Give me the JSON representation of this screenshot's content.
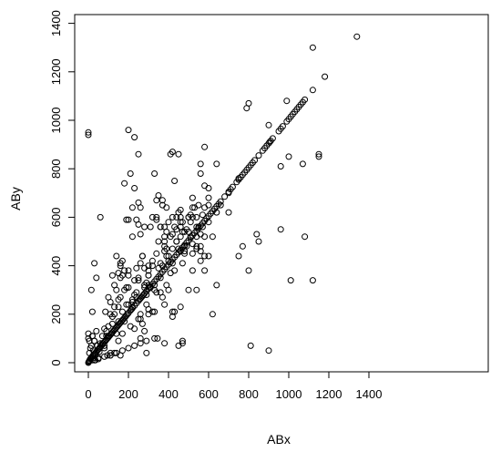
{
  "chart_data": {
    "type": "scatter",
    "title": "",
    "xlabel": "ABx",
    "ylabel": "ABy",
    "xlim": [
      -50,
      1400
    ],
    "ylim": [
      -30,
      1400
    ],
    "x_ticks": [
      0,
      200,
      400,
      600,
      800,
      1000,
      1200,
      1400
    ],
    "y_ticks": [
      0,
      200,
      400,
      600,
      800,
      1000,
      1200,
      1400
    ],
    "x_tick_labels": [
      "0",
      "200",
      "400",
      "600",
      "800",
      "1000",
      "1200",
      "1400"
    ],
    "y_tick_labels": [
      "0",
      "200",
      "400",
      "600",
      "800",
      "1000",
      "1200",
      "1400"
    ],
    "grid": false,
    "legend": "none",
    "marker": "open-circle",
    "marker_color": "#000000",
    "series": [
      {
        "x": [
          0,
          2,
          4,
          6,
          8,
          12,
          15,
          18,
          22,
          25,
          30,
          35,
          40,
          45,
          50,
          55,
          60,
          65,
          70,
          75,
          80,
          85,
          90,
          95,
          100,
          105,
          110,
          115,
          120,
          125,
          130,
          135,
          140,
          145,
          150,
          155,
          160,
          165,
          170,
          175,
          180,
          185,
          190,
          195,
          200,
          210,
          215,
          220,
          230,
          240,
          250,
          255,
          260,
          265,
          270,
          275,
          280,
          290,
          300,
          305,
          310,
          320,
          330,
          340,
          350,
          360,
          370,
          380,
          390,
          400,
          410,
          420,
          430,
          440,
          450,
          460,
          470,
          480,
          490,
          500,
          510,
          520,
          530,
          540,
          550,
          560,
          570,
          580,
          590,
          600,
          610,
          620,
          630,
          640,
          650,
          660,
          680,
          700,
          710,
          720,
          740,
          750,
          760,
          770,
          780,
          790,
          800,
          810,
          820,
          830,
          850,
          870,
          880,
          890,
          900,
          905,
          910,
          920,
          950,
          960,
          970,
          990,
          1000,
          1010,
          1020,
          1030,
          1040,
          1050,
          1060,
          1070,
          1080,
          1120,
          1340,
          0,
          5,
          20,
          60,
          80,
          100,
          150,
          180,
          230,
          260,
          290,
          330,
          380,
          420,
          470,
          520,
          560,
          620,
          640,
          20,
          30,
          40,
          15,
          90,
          110,
          140,
          150,
          160,
          170,
          200,
          230,
          260,
          300,
          345,
          380,
          420,
          460,
          510,
          540,
          580,
          620,
          700,
          750,
          800,
          850,
          900,
          960,
          1000,
          1080,
          1120,
          1150,
          0,
          10,
          20,
          25,
          30,
          40,
          50,
          60,
          70,
          80,
          95,
          100,
          120,
          130,
          140,
          160,
          180,
          200,
          220,
          240,
          250,
          260,
          280,
          300,
          320,
          340,
          360,
          380,
          400,
          420,
          440,
          460,
          480,
          500,
          520,
          540,
          560,
          580,
          600,
          0,
          5,
          15,
          20,
          25,
          30,
          35,
          45,
          55,
          70,
          80,
          90,
          110,
          120,
          130,
          150,
          160,
          170,
          190,
          200,
          210,
          220,
          230,
          240,
          250,
          260,
          270,
          280,
          290,
          300,
          320,
          330,
          340,
          350,
          360,
          370,
          380,
          390,
          400,
          410,
          430,
          450,
          460,
          470,
          490,
          500,
          520,
          540,
          570,
          580,
          600,
          200,
          230,
          250,
          260,
          280,
          300,
          330,
          350,
          370,
          390,
          400,
          420,
          440,
          460,
          480,
          500,
          520,
          540,
          560,
          580,
          600,
          640,
          700,
          750,
          150,
          170,
          190,
          210,
          230,
          250,
          270,
          290,
          310,
          340,
          360,
          380,
          410,
          430,
          450,
          470,
          490,
          510,
          530,
          550,
          570,
          600,
          120,
          140,
          160,
          180,
          200,
          220,
          240,
          260,
          280,
          300,
          320,
          340,
          370,
          390,
          420,
          440,
          460,
          480,
          500,
          520,
          540,
          560,
          580,
          100,
          110,
          130,
          150,
          170,
          190,
          220,
          250,
          270,
          290,
          310,
          330,
          350,
          370,
          390,
          410,
          430,
          450,
          470,
          35,
          55,
          85,
          110,
          130,
          160,
          180,
          200,
          240,
          300,
          360,
          400,
          440,
          480,
          520,
          560,
          600,
          660,
          770,
          790,
          800,
          810,
          840,
          900,
          960,
          990,
          1010,
          1070,
          1120,
          1150,
          1180,
          0,
          30,
          50,
          80,
          110,
          140,
          170,
          200,
          230,
          260,
          290,
          330,
          430,
          450,
          470,
          540,
          560,
          580,
          640,
          360,
          390,
          420,
          460,
          510,
          550,
          220,
          250,
          280,
          320,
          380,
          300,
          340,
          380,
          420,
          460
        ],
        "y": [
          0,
          3,
          6,
          9,
          14,
          17,
          20,
          24,
          28,
          32,
          36,
          40,
          45,
          50,
          55,
          60,
          65,
          70,
          75,
          80,
          85,
          90,
          95,
          100,
          105,
          110,
          115,
          120,
          125,
          130,
          135,
          140,
          145,
          150,
          155,
          160,
          165,
          170,
          175,
          180,
          185,
          190,
          195,
          200,
          205,
          215,
          220,
          225,
          235,
          245,
          255,
          260,
          265,
          270,
          275,
          280,
          285,
          295,
          305,
          310,
          315,
          325,
          335,
          345,
          355,
          365,
          375,
          385,
          395,
          405,
          415,
          425,
          435,
          445,
          455,
          465,
          475,
          485,
          495,
          505,
          515,
          525,
          535,
          545,
          555,
          565,
          575,
          585,
          595,
          605,
          615,
          625,
          635,
          645,
          655,
          665,
          685,
          705,
          715,
          725,
          745,
          755,
          765,
          775,
          785,
          795,
          805,
          815,
          825,
          835,
          855,
          875,
          885,
          895,
          905,
          910,
          915,
          925,
          955,
          965,
          975,
          995,
          1005,
          1015,
          1025,
          1035,
          1045,
          1055,
          1065,
          1075,
          1085,
          1125,
          1345,
          950,
          90,
          110,
          600,
          60,
          110,
          230,
          300,
          280,
          100,
          40,
          300,
          80,
          190,
          80,
          450,
          420,
          200,
          320,
          210,
          410,
          350,
          300,
          130,
          40,
          120,
          170,
          30,
          210,
          590,
          140,
          180,
          320,
          100,
          240,
          210,
          460,
          520,
          300,
          380,
          520,
          620,
          440,
          380,
          500,
          980,
          550,
          850,
          520,
          340,
          850,
          100,
          60,
          110,
          20,
          90,
          130,
          20,
          80,
          110,
          70,
          30,
          150,
          190,
          40,
          300,
          400,
          170,
          360,
          250,
          290,
          340,
          410,
          130,
          360,
          210,
          600,
          350,
          520,
          300,
          410,
          600,
          230,
          450,
          540,
          380,
          480,
          530,
          640,
          440,
          120,
          40,
          70,
          10,
          50,
          90,
          30,
          70,
          45,
          80,
          140,
          110,
          30,
          160,
          200,
          90,
          270,
          120,
          240,
          310,
          150,
          230,
          340,
          270,
          180,
          200,
          160,
          320,
          240,
          360,
          400,
          210,
          290,
          390,
          290,
          270,
          460,
          320,
          440,
          370,
          380,
          470,
          560,
          410,
          480,
          600,
          490,
          560,
          610,
          440,
          650,
          960,
          930,
          860,
          640,
          560,
          400,
          780,
          690,
          670,
          540,
          420,
          870,
          500,
          600,
          460,
          600,
          680,
          600,
          820,
          730,
          720,
          820,
          700,
          760,
          370,
          420,
          590,
          780,
          720,
          660,
          440,
          330,
          310,
          590,
          560,
          560,
          520,
          560,
          620,
          580,
          550,
          610,
          640,
          560,
          560,
          580,
          360,
          440,
          350,
          740,
          380,
          520,
          590,
          530,
          310,
          220,
          600,
          670,
          400,
          470,
          470,
          500,
          630,
          540,
          300,
          640,
          520,
          780,
          890,
          270,
          250,
          320,
          260,
          360,
          310,
          640,
          570,
          440,
          280,
          560,
          320,
          500,
          650,
          440,
          860,
          750,
          860,
          540,
          10,
          60,
          210,
          200,
          230,
          410,
          380,
          240,
          390,
          200,
          560,
          580,
          550,
          480,
          600,
          460,
          680,
          650,
          480,
          1050,
          1070,
          70,
          530,
          50,
          810,
          1080,
          340,
          820,
          1300,
          860,
          1180,
          940,
          10,
          15,
          25,
          30,
          40,
          50,
          60,
          70,
          80,
          90,
          100,
          210,
          70,
          90,
          470,
          480,
          520,
          620,
          410,
          640,
          600,
          520,
          580,
          650,
          260,
          350,
          390,
          420,
          480,
          380,
          450,
          500,
          530,
          580
        ]
      }
    ]
  }
}
